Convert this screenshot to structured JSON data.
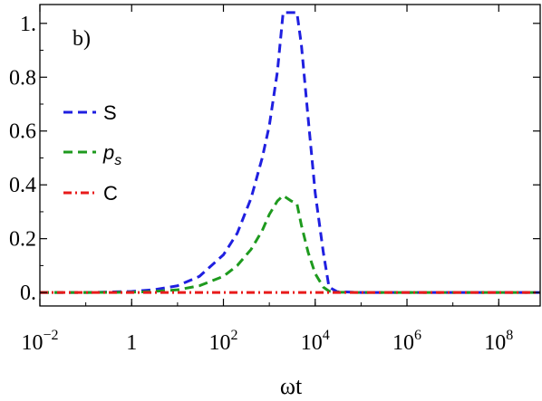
{
  "chart_data": {
    "type": "line",
    "panel_label": "b)",
    "xlabel": "ωt",
    "ylabel": "",
    "xscale": "log10",
    "xlim": [
      0.01,
      800000000
    ],
    "ylim": [
      -0.05,
      1.07
    ],
    "x_ticks": [
      {
        "value": 0.01,
        "base": "10",
        "exp": "−2"
      },
      {
        "value": 1,
        "base": "1",
        "exp": ""
      },
      {
        "value": 100,
        "base": "10",
        "exp": "2"
      },
      {
        "value": 10000,
        "base": "10",
        "exp": "4"
      },
      {
        "value": 1000000,
        "base": "10",
        "exp": "6"
      },
      {
        "value": 100000000,
        "base": "10",
        "exp": "8"
      }
    ],
    "y_ticks": [
      {
        "value": 0.0,
        "label": "0."
      },
      {
        "value": 0.2,
        "label": "0.2"
      },
      {
        "value": 0.4,
        "label": "0.4"
      },
      {
        "value": 0.6,
        "label": "0.6"
      },
      {
        "value": 0.8,
        "label": "0.8"
      },
      {
        "value": 1.0,
        "label": "1."
      }
    ],
    "legend_position": "left",
    "grid": false,
    "series": [
      {
        "name": "S",
        "legend_style": "normal",
        "color": "#1f1fe0",
        "dash": "10,6",
        "x": [
          0.01,
          0.1,
          1,
          3,
          10,
          30,
          100,
          200,
          400,
          700,
          1000,
          1500,
          2000,
          3000,
          4000,
          5000,
          7000,
          10000,
          15000,
          20000,
          30000,
          100000,
          1000000,
          10000000,
          100000000,
          800000000
        ],
        "y": [
          0.0,
          0.0,
          0.004,
          0.01,
          0.025,
          0.06,
          0.14,
          0.22,
          0.35,
          0.5,
          0.62,
          0.82,
          1.04,
          1.04,
          1.04,
          0.92,
          0.65,
          0.37,
          0.15,
          0.02,
          0.003,
          0.0,
          0.0,
          0.0,
          0.0,
          0.0
        ]
      },
      {
        "name": "p",
        "sub": "s",
        "legend_style": "italic",
        "color": "#1e9a1e",
        "dash": "10,6",
        "x": [
          0.01,
          0.1,
          1,
          3,
          10,
          30,
          100,
          200,
          400,
          700,
          1000,
          1500,
          2000,
          3000,
          4000,
          5000,
          7000,
          10000,
          15000,
          20000,
          30000,
          100000,
          1000000,
          10000000,
          100000000,
          800000000
        ],
        "y": [
          0.0,
          0.0,
          0.001,
          0.004,
          0.01,
          0.025,
          0.06,
          0.1,
          0.16,
          0.23,
          0.29,
          0.34,
          0.36,
          0.34,
          0.33,
          0.25,
          0.15,
          0.07,
          0.02,
          0.005,
          0.001,
          0.0,
          0.0,
          0.0,
          0.0,
          0.0
        ]
      },
      {
        "name": "C",
        "legend_style": "normal",
        "color": "#e81a1a",
        "dash": "9,4,2,4",
        "x": [
          0.01,
          800000000
        ],
        "y": [
          0.0,
          0.0
        ]
      }
    ]
  }
}
